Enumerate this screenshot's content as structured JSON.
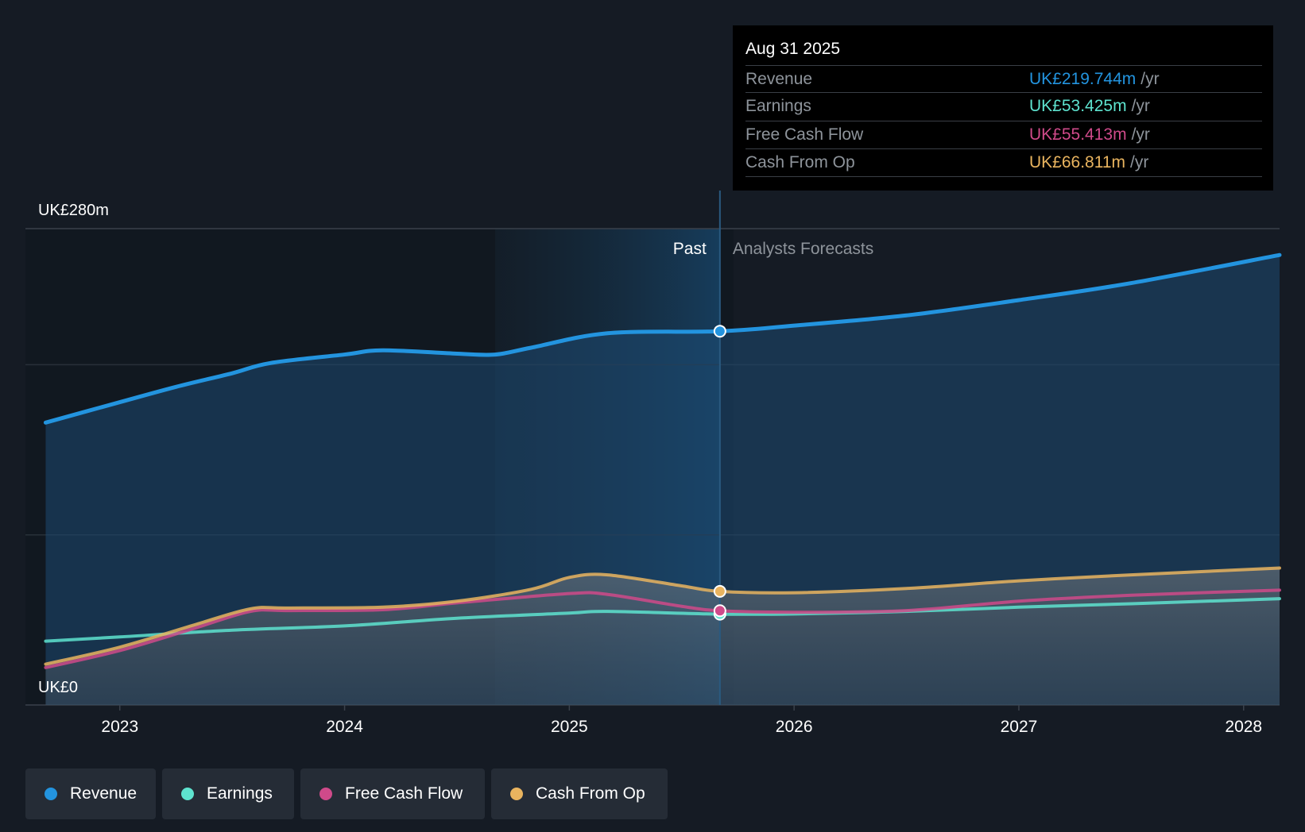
{
  "chart_data": {
    "type": "area",
    "y_axis": {
      "top_label": "UK£280m",
      "bottom_label": "UK£0",
      "ylim": [
        0,
        280
      ]
    },
    "x_ticks": [
      "2023",
      "2024",
      "2025",
      "2026",
      "2027",
      "2028"
    ],
    "sections": {
      "past_label": "Past",
      "forecast_label": "Analysts Forecasts",
      "divider_x": 2025.67,
      "shade_start_x": 2024.67
    },
    "x_range": [
      2022.58,
      2028.16
    ],
    "series": [
      {
        "name": "Revenue",
        "key": "revenue",
        "color": "#2394df",
        "fill": true,
        "x": [
          2022.67,
          2023.0,
          2023.25,
          2023.5,
          2023.67,
          2024.0,
          2024.17,
          2024.5,
          2024.67,
          2024.83,
          2025.17,
          2025.67,
          2026.0,
          2026.5,
          2027.0,
          2027.5,
          2028.16
        ],
        "y": [
          166,
          178,
          187,
          195,
          201,
          206,
          208.5,
          206.5,
          206,
          210,
          218.5,
          219.7,
          223,
          229,
          238,
          248,
          264.5
        ]
      },
      {
        "name": "Earnings",
        "key": "earnings",
        "color": "#5ee3cf",
        "fill": false,
        "x": [
          2022.67,
          2023.0,
          2023.5,
          2024.0,
          2024.5,
          2025.0,
          2025.17,
          2025.67,
          2026.0,
          2026.5,
          2027.0,
          2027.5,
          2028.16
        ],
        "y": [
          37.5,
          40,
          44,
          46.5,
          51,
          54,
          55,
          53.4,
          53.5,
          55,
          57.5,
          59.5,
          62.5
        ]
      },
      {
        "name": "Free Cash Flow",
        "key": "fcf",
        "color": "#cf4a8a",
        "fill": false,
        "x": [
          2022.67,
          2023.0,
          2023.33,
          2023.58,
          2023.75,
          2024.17,
          2024.5,
          2025.0,
          2025.17,
          2025.5,
          2025.67,
          2026.0,
          2026.5,
          2027.0,
          2027.5,
          2028.16
        ],
        "y": [
          22,
          32,
          45,
          55,
          55.5,
          56,
          60,
          65.5,
          65,
          58,
          55.4,
          54.5,
          55.5,
          61,
          64.5,
          67.5
        ]
      },
      {
        "name": "Cash From Op",
        "key": "cfo",
        "color": "#e9b45f",
        "fill": false,
        "x": [
          2022.67,
          2023.0,
          2023.33,
          2023.58,
          2023.75,
          2024.17,
          2024.5,
          2024.83,
          2025.0,
          2025.17,
          2025.5,
          2025.67,
          2026.0,
          2026.5,
          2027.0,
          2027.5,
          2028.16
        ],
        "y": [
          24,
          34,
          47,
          56.5,
          57,
          57.5,
          61,
          68,
          75,
          76.5,
          70,
          66.8,
          66,
          68.5,
          73,
          76.5,
          80.5
        ]
      }
    ]
  },
  "tooltip": {
    "date": "Aug 31 2025",
    "unit": "/yr",
    "rows": [
      {
        "label": "Revenue",
        "value": "UK£219.744m",
        "color": "#2394df"
      },
      {
        "label": "Earnings",
        "value": "UK£53.425m",
        "color": "#5ee3cf"
      },
      {
        "label": "Free Cash Flow",
        "value": "UK£55.413m",
        "color": "#cf4a8a"
      },
      {
        "label": "Cash From Op",
        "value": "UK£66.811m",
        "color": "#e9b45f"
      }
    ]
  },
  "legend": [
    {
      "label": "Revenue",
      "color": "#2394df"
    },
    {
      "label": "Earnings",
      "color": "#5ee3cf"
    },
    {
      "label": "Free Cash Flow",
      "color": "#cf4a8a"
    },
    {
      "label": "Cash From Op",
      "color": "#e9b45f"
    }
  ]
}
